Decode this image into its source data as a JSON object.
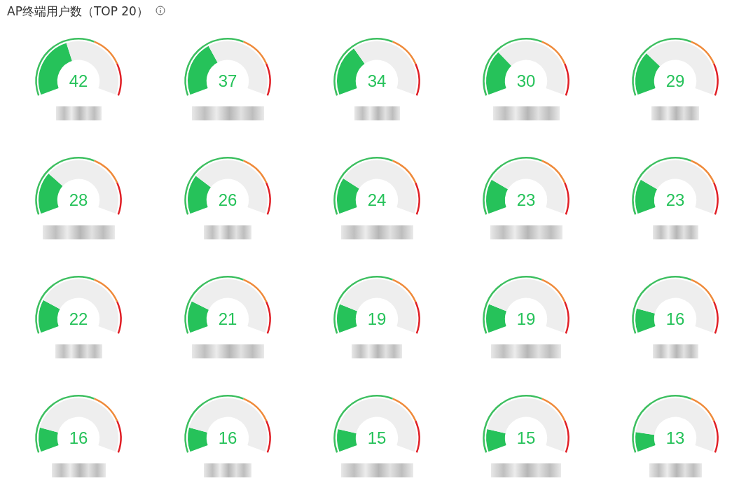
{
  "chart_data": [
    {
      "type": "donut",
      "title": "AP终端用户数（TOP 20）",
      "categories": [
        null,
        null
      ],
      "values": [
        42,
        58
      ],
      "colors": [
        "#26c25a",
        "#eeeeee"
      ],
      "annotations": [
        "42"
      ]
    },
    {
      "type": "donut",
      "categories": [
        null,
        null
      ],
      "values": [
        37,
        63
      ],
      "colors": [
        "#26c25a",
        "#eeeeee"
      ],
      "annotations": [
        "37"
      ]
    },
    {
      "type": "donut",
      "categories": [
        null,
        null
      ],
      "values": [
        34,
        66
      ],
      "colors": [
        "#26c25a",
        "#eeeeee"
      ],
      "annotations": [
        "34"
      ]
    },
    {
      "type": "donut",
      "categories": [
        null,
        null
      ],
      "values": [
        30,
        70
      ],
      "colors": [
        "#26c25a",
        "#eeeeee"
      ],
      "annotations": [
        "30"
      ]
    },
    {
      "type": "donut",
      "categories": [
        null,
        null
      ],
      "values": [
        29,
        71
      ],
      "colors": [
        "#26c25a",
        "#eeeeee"
      ],
      "annotations": [
        "29"
      ]
    },
    {
      "type": "donut",
      "categories": [
        null,
        null
      ],
      "values": [
        28,
        72
      ],
      "colors": [
        "#26c25a",
        "#eeeeee"
      ],
      "annotations": [
        "28"
      ]
    },
    {
      "type": "donut",
      "categories": [
        null,
        null
      ],
      "values": [
        26,
        74
      ],
      "colors": [
        "#26c25a",
        "#eeeeee"
      ],
      "annotations": [
        "26"
      ]
    },
    {
      "type": "donut",
      "categories": [
        null,
        null
      ],
      "values": [
        24,
        76
      ],
      "colors": [
        "#26c25a",
        "#eeeeee"
      ],
      "annotations": [
        "24"
      ]
    },
    {
      "type": "donut",
      "categories": [
        null,
        null
      ],
      "values": [
        23,
        77
      ],
      "colors": [
        "#26c25a",
        "#eeeeee"
      ],
      "annotations": [
        "23"
      ]
    },
    {
      "type": "donut",
      "categories": [
        null,
        null
      ],
      "values": [
        23,
        77
      ],
      "colors": [
        "#26c25a",
        "#eeeeee"
      ],
      "annotations": [
        "23"
      ]
    },
    {
      "type": "donut",
      "categories": [
        null,
        null
      ],
      "values": [
        22,
        78
      ],
      "colors": [
        "#26c25a",
        "#eeeeee"
      ],
      "annotations": [
        "22"
      ]
    },
    {
      "type": "donut",
      "categories": [
        null,
        null
      ],
      "values": [
        21,
        79
      ],
      "colors": [
        "#26c25a",
        "#eeeeee"
      ],
      "annotations": [
        "21"
      ]
    },
    {
      "type": "donut",
      "categories": [
        null,
        null
      ],
      "values": [
        19,
        81
      ],
      "colors": [
        "#26c25a",
        "#eeeeee"
      ],
      "annotations": [
        "19"
      ]
    },
    {
      "type": "donut",
      "categories": [
        null,
        null
      ],
      "values": [
        19,
        81
      ],
      "colors": [
        "#26c25a",
        "#eeeeee"
      ],
      "annotations": [
        "19"
      ]
    },
    {
      "type": "donut",
      "categories": [
        null,
        null
      ],
      "values": [
        16,
        84
      ],
      "colors": [
        "#26c25a",
        "#eeeeee"
      ],
      "annotations": [
        "16"
      ]
    },
    {
      "type": "donut",
      "categories": [
        null,
        null
      ],
      "values": [
        16,
        84
      ],
      "colors": [
        "#26c25a",
        "#eeeeee"
      ],
      "annotations": [
        "16"
      ]
    },
    {
      "type": "donut",
      "categories": [
        null,
        null
      ],
      "values": [
        16,
        84
      ],
      "colors": [
        "#26c25a",
        "#eeeeee"
      ],
      "annotations": [
        "16"
      ]
    },
    {
      "type": "donut",
      "categories": [
        null,
        null
      ],
      "values": [
        15,
        85
      ],
      "colors": [
        "#26c25a",
        "#eeeeee"
      ],
      "annotations": [
        "15"
      ]
    },
    {
      "type": "donut",
      "categories": [
        null,
        null
      ],
      "values": [
        15,
        85
      ],
      "colors": [
        "#26c25a",
        "#eeeeee"
      ],
      "annotations": [
        "15"
      ]
    },
    {
      "type": "donut",
      "categories": [
        null,
        null
      ],
      "values": [
        13,
        87
      ],
      "colors": [
        "#26c25a",
        "#eeeeee"
      ],
      "annotations": [
        "13"
      ]
    }
  ]
}
